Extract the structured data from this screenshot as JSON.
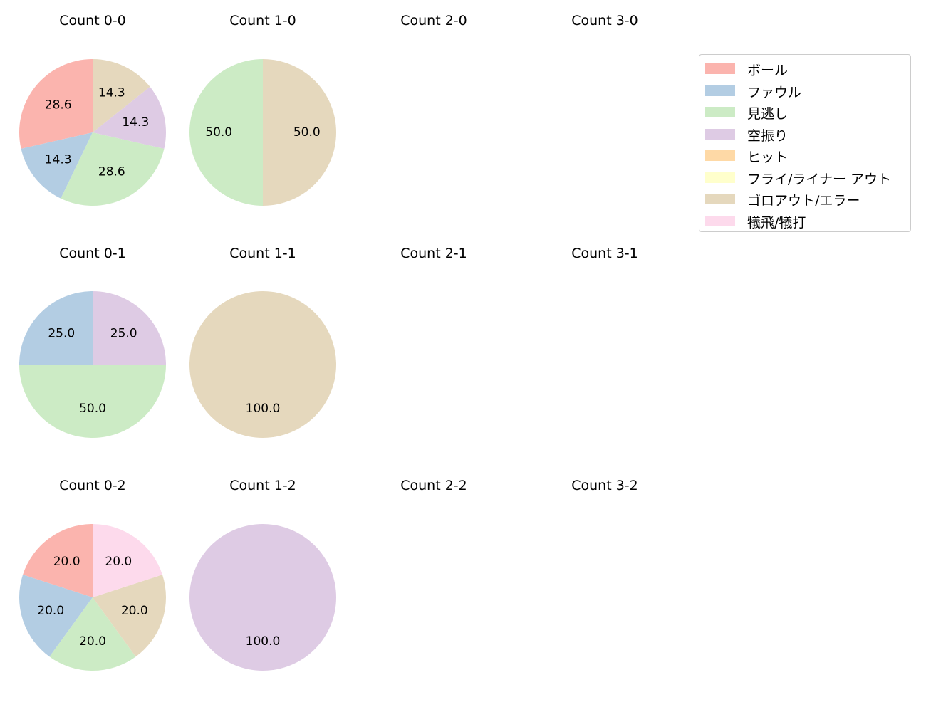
{
  "chart_data": {
    "type": "pie",
    "categories": [
      "ボール",
      "ファウル",
      "見逃し",
      "空振り",
      "ヒット",
      "フライ/ライナー アウト",
      "ゴロアウト/エラー",
      "犠飛/犠打"
    ],
    "colors": [
      "#fbb4ae",
      "#b3cde3",
      "#ccebc5",
      "#decbe4",
      "#fed9a6",
      "#ffffcc",
      "#e5d8bd",
      "#fddaec"
    ],
    "legend_position": "top-right",
    "panels": [
      {
        "title": "Count 0-0",
        "values": [
          28.6,
          14.3,
          28.6,
          14.3,
          0,
          0,
          14.3,
          0
        ]
      },
      {
        "title": "Count 1-0",
        "values": [
          0,
          0,
          50.0,
          0,
          0,
          0,
          50.0,
          0
        ]
      },
      {
        "title": "Count 2-0",
        "values": []
      },
      {
        "title": "Count 3-0",
        "values": []
      },
      {
        "title": "Count 0-1",
        "values": [
          0,
          25.0,
          50.0,
          25.0,
          0,
          0,
          0,
          0
        ]
      },
      {
        "title": "Count 1-1",
        "values": [
          0,
          0,
          0,
          0,
          0,
          0,
          100.0,
          0
        ]
      },
      {
        "title": "Count 2-1",
        "values": []
      },
      {
        "title": "Count 3-1",
        "values": []
      },
      {
        "title": "Count 0-2",
        "values": [
          20.0,
          20.0,
          20.0,
          0,
          0,
          0,
          20.0,
          20.0
        ]
      },
      {
        "title": "Count 1-2",
        "values": [
          0,
          0,
          0,
          100.0,
          0,
          0,
          0,
          0
        ]
      },
      {
        "title": "Count 2-2",
        "values": []
      },
      {
        "title": "Count 3-2",
        "values": []
      }
    ]
  }
}
